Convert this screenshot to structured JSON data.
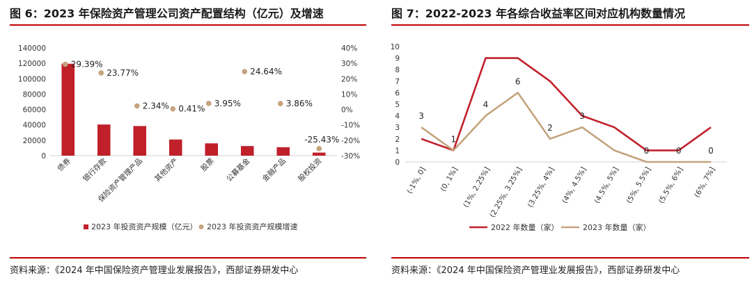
{
  "left": {
    "title": "图 6：2023 年保险资产管理公司资产配置结构（亿元）及增速",
    "source": "资料来源：《2024 年中国保险资产管理业发展报告》，西部证券研发中心"
  },
  "right": {
    "title": "图 7：2022-2023 年各综合收益率区间对应机构数量情况",
    "source": "资料来源：《2024 年中国保险资产管理业发展报告》，西部证券研发中心"
  },
  "chart_data": [
    {
      "type": "bar",
      "title": "图 6：2023 年保险资产管理公司资产配置结构（亿元）及增速",
      "categories": [
        "债券",
        "银行存款",
        "保险资产管理产品",
        "其他资产",
        "股票",
        "公募基金",
        "金融产品",
        "股权投资"
      ],
      "series": [
        {
          "name": "2023 年投资资产规模（亿元）",
          "type": "bar",
          "axis": "left",
          "values": [
            119500,
            40500,
            38500,
            21000,
            16000,
            12500,
            11000,
            4000
          ]
        },
        {
          "name": "2023 年投资资产规模增速",
          "type": "scatter",
          "axis": "right",
          "values": [
            29.39,
            23.77,
            2.34,
            0.41,
            3.95,
            24.64,
            3.86,
            -25.43
          ],
          "labels": [
            "29.39%",
            "23.77%",
            "2.34%",
            "0.41%",
            "3.95%",
            "24.64%",
            "3.86%",
            "-25.43%"
          ]
        }
      ],
      "ylim": [
        0,
        140000
      ],
      "yticks": [
        "0",
        "20000",
        "40000",
        "60000",
        "80000",
        "100000",
        "120000",
        "140000"
      ],
      "y2lim": [
        -30,
        40
      ],
      "y2ticks": [
        "-30%",
        "-20%",
        "-10%",
        "0%",
        "10%",
        "20%",
        "30%",
        "40%"
      ],
      "legend_position": "bottom",
      "colors": {
        "bar": "#c0202a",
        "dot": "#c4a37d"
      }
    },
    {
      "type": "line",
      "title": "图 7：2022-2023 年各综合收益率区间对应机构数量情况",
      "categories": [
        "(-1%, 0]",
        "(0, 1%]",
        "(1%, 2.25%]",
        "(2.25%, 3.25%]",
        "(3.25%, 4%]",
        "(4%, 4.5%]",
        "(4.5%, 5%]",
        "(5%, 5.5%]",
        "(5.5%, 6%]",
        "(6%, 7%]"
      ],
      "series": [
        {
          "name": "2022 年数量（家）",
          "values": [
            2,
            1,
            9,
            9,
            7,
            4,
            3,
            1,
            1,
            3
          ]
        },
        {
          "name": "2023 年数量（家）",
          "values": [
            3,
            1,
            4,
            6,
            2,
            3,
            1,
            0,
            0,
            0
          ],
          "labels": [
            "3",
            "1",
            "4",
            "6",
            "2",
            "3",
            "",
            "0",
            "0",
            "0"
          ]
        }
      ],
      "ylim": [
        0,
        10
      ],
      "yticks": [
        "0",
        "1",
        "2",
        "3",
        "4",
        "5",
        "6",
        "7",
        "8",
        "9",
        "10"
      ],
      "legend_position": "bottom",
      "colors": {
        "s2022": "#c0202a",
        "s2023": "#c4a37d"
      }
    }
  ]
}
